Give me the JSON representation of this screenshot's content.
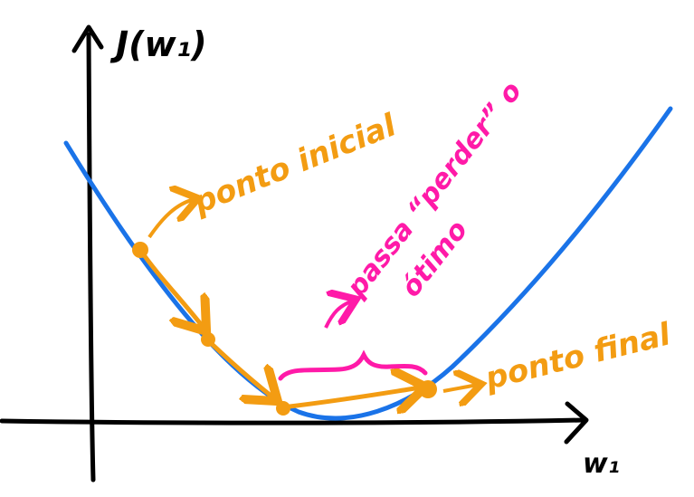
{
  "axes": {
    "y_label": "J(w₁)",
    "x_label": "w₁"
  },
  "annotations": {
    "start_label": "ponto inicial",
    "end_label": "ponto final",
    "overshoot_line1": "passa “perder” o",
    "overshoot_line2": "ótimo"
  },
  "colors": {
    "axis": "#000000",
    "curve": "#1a73e8",
    "steps": "#f39c12",
    "overshoot": "#ff1aa8"
  }
}
